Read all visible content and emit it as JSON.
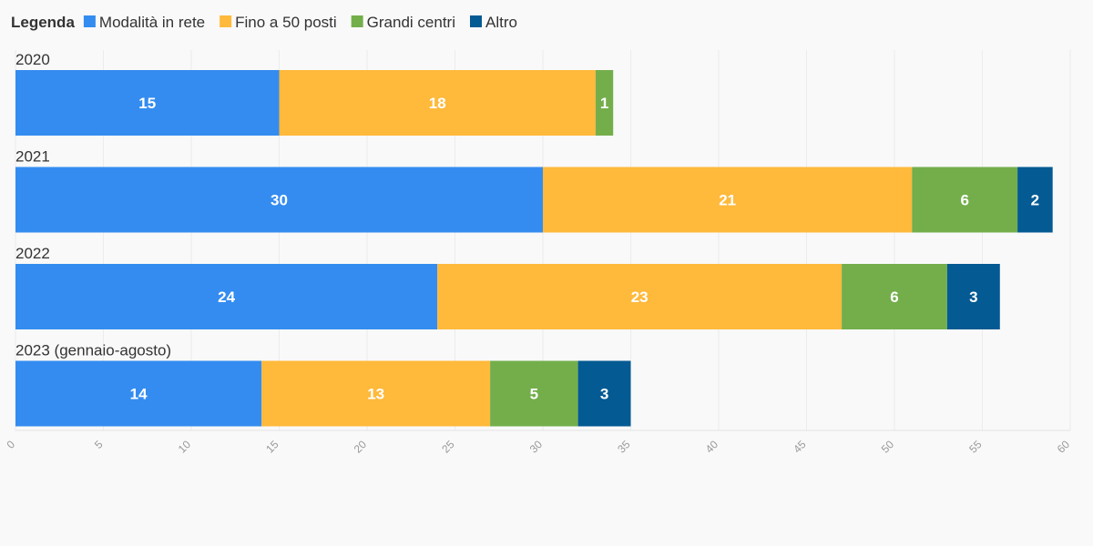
{
  "chart_data": {
    "type": "bar",
    "orientation": "horizontal",
    "stacked": true,
    "legend": {
      "title": "Legenda",
      "position": "top-left"
    },
    "categories": [
      "2020",
      "2021",
      "2022",
      "2023 (gennaio-agosto)"
    ],
    "series": [
      {
        "name": "Modalità in rete",
        "color": "#348cf0",
        "values": [
          15,
          30,
          24,
          14
        ]
      },
      {
        "name": "Fino a 50 posti",
        "color": "#ffb93b",
        "values": [
          18,
          21,
          23,
          13
        ]
      },
      {
        "name": "Grandi centri",
        "color": "#73ae4b",
        "values": [
          1,
          6,
          6,
          5
        ]
      },
      {
        "name": "Altro",
        "color": "#045a93",
        "values": [
          0,
          2,
          3,
          3
        ]
      }
    ],
    "xlim": [
      0,
      60
    ],
    "xticks": [
      "0",
      "5",
      "10",
      "15",
      "20",
      "25",
      "30",
      "35",
      "40",
      "45",
      "50",
      "55",
      "60"
    ],
    "grid": true,
    "data_labels": true
  }
}
